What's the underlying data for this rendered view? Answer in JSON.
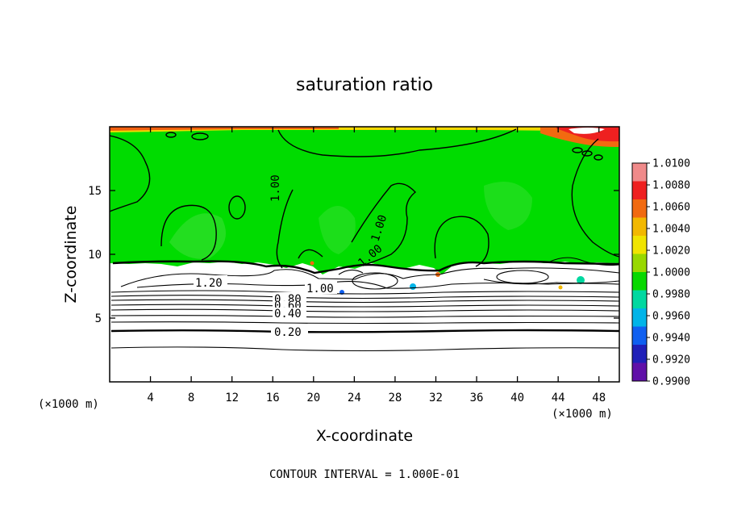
{
  "chart_data": {
    "type": "heatmap",
    "title": "saturation ratio",
    "xlabel": "X-coordinate",
    "ylabel": "Z-coordinate",
    "x_unit": "(×1000 m)",
    "y_unit": "(×1000 m)",
    "xlim": [
      0,
      50
    ],
    "ylim": [
      0,
      20
    ],
    "x_ticks": [
      4,
      8,
      12,
      16,
      20,
      24,
      28,
      32,
      36,
      40,
      44,
      48
    ],
    "y_ticks": [
      5,
      10,
      15
    ],
    "colorbar": {
      "labels": [
        "1.0100",
        "1.0080",
        "1.0060",
        "1.0040",
        "1.0020",
        "1.0000",
        "0.9980",
        "0.9960",
        "0.9940",
        "0.9920",
        "0.9900"
      ],
      "colors": [
        "#ef8a8a",
        "#ee2020",
        "#f16a10",
        "#f2b800",
        "#f0e400",
        "#98d800",
        "#08d800",
        "#00d8a0",
        "#00b4e8",
        "#1060f0",
        "#2020b8",
        "#6010a8"
      ]
    },
    "fields": {
      "supersaturated_layer_z": [
        9.2,
        20
      ],
      "subsaturated_layer_z": [
        0,
        9.2
      ],
      "green_fill_color": "#00dc00"
    },
    "contour_labels": [
      {
        "text": "1.00",
        "x": 16.3,
        "y": 15.0
      },
      {
        "text": "1.00",
        "x": 26.5,
        "y": 12.1
      },
      {
        "text": "1.00",
        "x": 25.0,
        "y": 9.8
      },
      {
        "text": "1.20",
        "x": 9.7,
        "y": 7.8
      },
      {
        "text": "1.00",
        "x": 19.0,
        "y": 7.3
      },
      {
        "text": "0.80",
        "x": 17.5,
        "y": 6.5
      },
      {
        "text": "0.60",
        "x": 17.5,
        "y": 5.9
      },
      {
        "text": "0.40",
        "x": 17.5,
        "y": 5.2
      },
      {
        "text": "0.20",
        "x": 17.5,
        "y": 3.8
      }
    ],
    "contour_interval_note": "CONTOUR INTERVAL = 1.000E-01"
  }
}
